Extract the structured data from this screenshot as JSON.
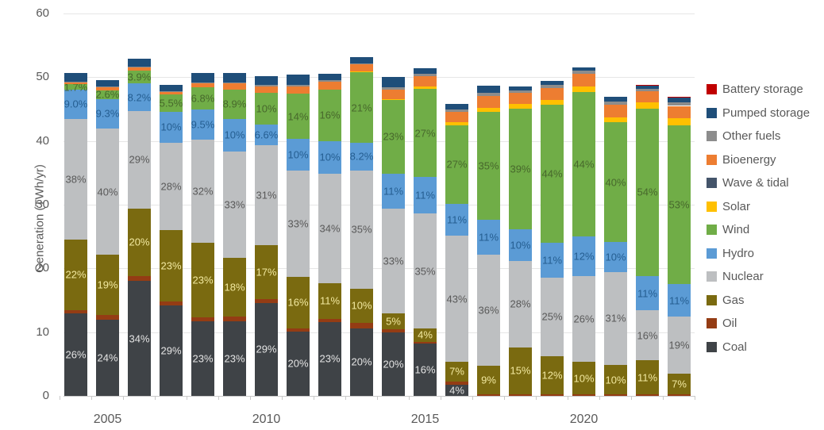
{
  "chart_data": {
    "type": "bar",
    "stacked": true,
    "title": "",
    "xlabel": "",
    "ylabel": "Generation (TWh/yr)",
    "ylim": [
      0,
      60
    ],
    "grid": true,
    "legend_position": "right",
    "y_ticks": [
      0,
      10,
      20,
      30,
      40,
      50,
      60
    ],
    "x_tick_labels": [
      {
        "label": "2005",
        "year": 2005
      },
      {
        "label": "2010",
        "year": 2010
      },
      {
        "label": "2015",
        "year": 2015
      },
      {
        "label": "2020",
        "year": 2020
      }
    ],
    "years": [
      2004,
      2005,
      2006,
      2007,
      2008,
      2009,
      2010,
      2011,
      2012,
      2013,
      2014,
      2015,
      2016,
      2017,
      2018,
      2019,
      2020,
      2021,
      2022,
      2023
    ],
    "units": "TWh/yr",
    "series": [
      {
        "name": "Coal",
        "color": "#3f4347",
        "label_color": "#e4e4e4",
        "values": [
          13.0,
          11.9,
          18.0,
          14.2,
          11.7,
          11.7,
          14.6,
          10.1,
          11.6,
          10.6,
          10.0,
          8.2,
          1.8,
          0,
          0,
          0,
          0,
          0,
          0,
          0
        ],
        "labels": [
          "26%",
          "24%",
          "34%",
          "29%",
          "23%",
          "23%",
          "29%",
          "20%",
          "23%",
          "20%",
          "20%",
          "16%",
          "4%",
          null,
          null,
          null,
          null,
          null,
          null,
          null
        ]
      },
      {
        "name": "Oil",
        "color": "#943c14",
        "label_color": "#ffffff",
        "values": [
          0.5,
          0.8,
          0.8,
          0.6,
          0.6,
          0.7,
          0.6,
          0.5,
          0.5,
          0.9,
          0.4,
          0.3,
          0.4,
          0.3,
          0.3,
          0.3,
          0.2,
          0.2,
          0.2,
          0.2
        ],
        "labels": [
          null,
          null,
          null,
          null,
          null,
          null,
          null,
          null,
          null,
          null,
          null,
          null,
          null,
          null,
          null,
          null,
          null,
          null,
          null,
          null
        ]
      },
      {
        "name": "Gas",
        "color": "#7a6a10",
        "label_color": "#f2e9a0",
        "values": [
          11.0,
          9.4,
          10.6,
          11.2,
          11.7,
          9.2,
          8.5,
          8.1,
          5.6,
          5.3,
          2.5,
          2.1,
          3.2,
          4.4,
          7.3,
          5.9,
          5.2,
          4.7,
          5.4,
          3.3
        ],
        "labels": [
          "22%",
          "19%",
          "20%",
          "23%",
          "23%",
          "18%",
          "17%",
          "16%",
          "11%",
          "10%",
          "5%",
          "4%",
          "7%",
          "9%",
          "15%",
          "12%",
          "10%",
          "10%",
          "11%",
          "7%"
        ]
      },
      {
        "name": "Nuclear",
        "color": "#bdbfc1",
        "label_color": "#595959",
        "values": [
          19.0,
          19.9,
          15.3,
          13.7,
          16.2,
          16.8,
          15.6,
          16.6,
          17.2,
          18.6,
          16.5,
          18.0,
          19.7,
          17.5,
          13.6,
          12.4,
          13.4,
          14.5,
          7.8,
          8.9
        ],
        "labels": [
          "38%",
          "40%",
          "29%",
          "28%",
          "32%",
          "33%",
          "31%",
          "33%",
          "34%",
          "35%",
          "33%",
          "35%",
          "43%",
          "36%",
          "28%",
          "25%",
          "26%",
          "31%",
          "16%",
          "19%"
        ]
      },
      {
        "name": "Hydro",
        "color": "#5b9bd5",
        "label_color": "#255e91",
        "values": [
          4.5,
          4.6,
          4.3,
          4.9,
          4.8,
          5.1,
          3.3,
          5.0,
          5.1,
          4.3,
          5.5,
          5.7,
          5.0,
          5.4,
          4.9,
          5.4,
          6.2,
          4.7,
          5.4,
          5.2
        ],
        "labels": [
          "9.0%",
          "9.3%",
          "8.2%",
          "10%",
          "9.5%",
          "10%",
          "6.6%",
          "10%",
          "10%",
          "8.2%",
          "11%",
          "11%",
          "11%",
          "11%",
          "10%",
          "11%",
          "12%",
          "10%",
          "11%",
          "11%"
        ]
      },
      {
        "name": "Wind",
        "color": "#70ad47",
        "label_color": "#47682c",
        "values": [
          0.9,
          1.3,
          2.1,
          2.7,
          3.4,
          4.5,
          5.0,
          7.1,
          8.1,
          11.1,
          11.5,
          13.9,
          12.4,
          17.0,
          19.0,
          21.7,
          22.7,
          18.8,
          26.3,
          24.9
        ],
        "labels": [
          "1.7%",
          "2.6%",
          "3.9%",
          "5.5%",
          "6.8%",
          "8.9%",
          "10%",
          "14%",
          "16%",
          "21%",
          "23%",
          "27%",
          "27%",
          "35%",
          "39%",
          "44%",
          "44%",
          "40%",
          "54%",
          "53%"
        ]
      },
      {
        "name": "Solar",
        "color": "#ffc000",
        "label_color": "#7f6000",
        "values": [
          0,
          0,
          0,
          0,
          0,
          0,
          0,
          0,
          0,
          0.1,
          0.2,
          0.4,
          0.5,
          0.6,
          0.7,
          0.7,
          0.8,
          0.8,
          1.0,
          1.1
        ],
        "labels": [
          null,
          null,
          null,
          null,
          null,
          null,
          null,
          null,
          null,
          null,
          null,
          null,
          null,
          null,
          null,
          null,
          null,
          null,
          null,
          null
        ]
      },
      {
        "name": "Wave & tidal",
        "color": "#44546a",
        "label_color": "#ffffff",
        "values": [
          0,
          0,
          0,
          0,
          0,
          0,
          0,
          0,
          0,
          0,
          0,
          0,
          0,
          0,
          0,
          0,
          0,
          0,
          0,
          0
        ],
        "labels": [
          null,
          null,
          null,
          null,
          null,
          null,
          null,
          null,
          null,
          null,
          null,
          null,
          null,
          null,
          null,
          null,
          null,
          null,
          null,
          null
        ]
      },
      {
        "name": "Bioenergy",
        "color": "#ed7d31",
        "label_color": "#833c00",
        "values": [
          0.35,
          0.5,
          0.5,
          0.4,
          0.6,
          1.0,
          1.0,
          1.1,
          1.2,
          1.1,
          1.5,
          1.6,
          1.6,
          1.9,
          1.8,
          1.9,
          2.0,
          2.0,
          1.7,
          1.9
        ],
        "labels": [
          null,
          null,
          null,
          null,
          null,
          null,
          null,
          null,
          null,
          null,
          null,
          null,
          null,
          null,
          null,
          null,
          null,
          null,
          null,
          null
        ]
      },
      {
        "name": "Other fuels",
        "color": "#8c8c8c",
        "label_color": "#ffffff",
        "values": [
          0.1,
          0.15,
          0.1,
          0.1,
          0.2,
          0.2,
          0.2,
          0.25,
          0.3,
          0.2,
          0.3,
          0.3,
          0.4,
          0.4,
          0.3,
          0.5,
          0.5,
          0.5,
          0.4,
          0.5
        ],
        "labels": [
          null,
          null,
          null,
          null,
          null,
          null,
          null,
          null,
          null,
          null,
          null,
          null,
          null,
          null,
          null,
          null,
          null,
          null,
          null,
          null
        ]
      },
      {
        "name": "Pumped storage",
        "color": "#1f4e79",
        "label_color": "#ffffff",
        "values": [
          1.3,
          1.0,
          1.2,
          1.0,
          1.5,
          1.5,
          1.4,
          1.65,
          0.9,
          0.9,
          1.6,
          0.9,
          0.8,
          1.2,
          0.7,
          0.6,
          0.6,
          0.7,
          0.5,
          0.8
        ],
        "labels": [
          null,
          null,
          null,
          null,
          null,
          null,
          null,
          null,
          null,
          null,
          null,
          null,
          null,
          null,
          null,
          null,
          null,
          null,
          null,
          null
        ]
      },
      {
        "name": "Battery storage",
        "color": "#c00000",
        "label_color": "#ffffff",
        "values": [
          0,
          0,
          0,
          0,
          0,
          0,
          0,
          0,
          0,
          0,
          0,
          0,
          0,
          0,
          0,
          0,
          0,
          0,
          0.05,
          0.1
        ],
        "labels": [
          null,
          null,
          null,
          null,
          null,
          null,
          null,
          null,
          null,
          null,
          null,
          null,
          null,
          null,
          null,
          null,
          null,
          null,
          null,
          null
        ]
      }
    ]
  },
  "legend": {
    "items": [
      {
        "label": "Battery storage",
        "color": "#c00000"
      },
      {
        "label": "Pumped storage",
        "color": "#1f4e79"
      },
      {
        "label": "Other fuels",
        "color": "#8c8c8c"
      },
      {
        "label": "Bioenergy",
        "color": "#ed7d31"
      },
      {
        "label": "Wave & tidal",
        "color": "#44546a"
      },
      {
        "label": "Solar",
        "color": "#ffc000"
      },
      {
        "label": "Wind",
        "color": "#70ad47"
      },
      {
        "label": "Hydro",
        "color": "#5b9bd5"
      },
      {
        "label": "Nuclear",
        "color": "#bdbfc1"
      },
      {
        "label": "Gas",
        "color": "#7a6a10"
      },
      {
        "label": "Oil",
        "color": "#943c14"
      },
      {
        "label": "Coal",
        "color": "#3f4347"
      }
    ]
  }
}
